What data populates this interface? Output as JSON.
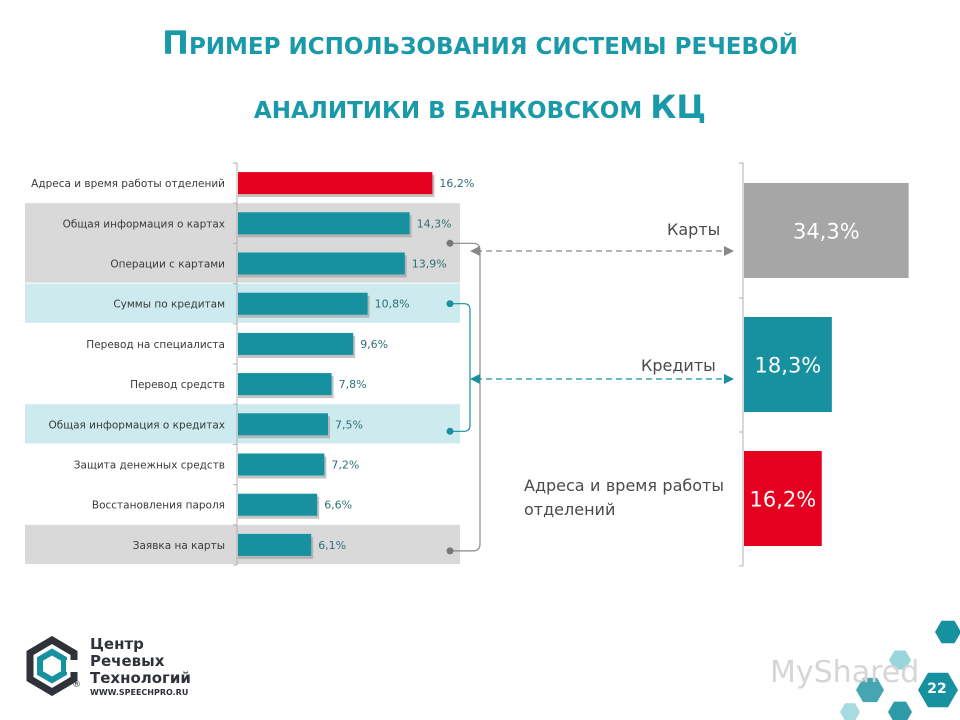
{
  "title": {
    "line1_cap": "П",
    "line1_rest": "ример использования системы речевой",
    "line2_rest": "аналитики в банковском ",
    "line2_caps": "КЦ"
  },
  "colors": {
    "accent": "#1a9aa8",
    "bar_teal": "#17909f",
    "bar_red": "#e6001f",
    "bar_gray": "#a6a6a6",
    "band_gray": "#d9d9d9",
    "band_teal": "#cdeaee"
  },
  "chart_data": [
    {
      "type": "bar",
      "orientation": "horizontal",
      "categories": [
        "Адреса и время работы отделений",
        "Общая информация о картах",
        "Операции с картами",
        "Суммы по кредитам",
        "Перевод на специалиста",
        "Перевод средств",
        "Общая информация о кредитах",
        "Защита денежных средств",
        "Восстановления пароля",
        "Заявка на карты"
      ],
      "values": [
        16.2,
        14.3,
        13.9,
        10.8,
        9.6,
        7.8,
        7.5,
        7.2,
        6.6,
        6.1
      ],
      "value_labels": [
        "16,2%",
        "14,3%",
        "13,9%",
        "10,8%",
        "9,6%",
        "7,8%",
        "7,5%",
        "7,2%",
        "6,6%",
        "6,1%"
      ],
      "groups": [
        "red",
        "cards",
        "cards",
        "credits",
        "none",
        "none",
        "credits",
        "none",
        "none",
        "cards"
      ],
      "unit": "%"
    },
    {
      "type": "bar",
      "orientation": "horizontal",
      "categories": [
        "Карты",
        "Кредиты",
        "Адреса и время работы отделений"
      ],
      "values": [
        34.3,
        18.3,
        16.2
      ],
      "value_labels": [
        "34,3%",
        "18,3%",
        "16,2%"
      ],
      "colors": [
        "#a6a6a6",
        "#17909f",
        "#e6001f"
      ],
      "unit": "%"
    }
  ],
  "logo": {
    "line1": "Центр",
    "line2": "Речевых",
    "line3": "Технологий",
    "url": "WWW.SPEECHPRO.RU",
    "reg": "®"
  },
  "watermark": "MyShared",
  "page_number": "22"
}
